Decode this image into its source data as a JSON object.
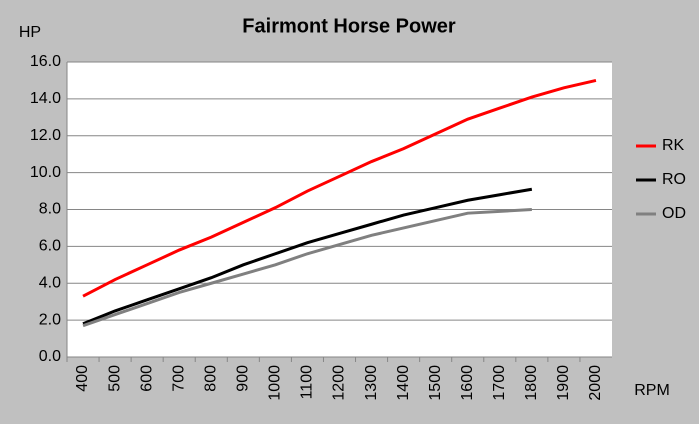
{
  "chart_data": {
    "type": "line",
    "title": "Fairmont Horse Power",
    "y_label": "HP",
    "x_label": "RPM",
    "categories": [
      "400",
      "500",
      "600",
      "700",
      "800",
      "900",
      "1000",
      "1100",
      "1200",
      "1300",
      "1400",
      "1500",
      "1600",
      "1700",
      "1800",
      "1900",
      "2000"
    ],
    "series": [
      {
        "name": "RK",
        "color": "#ff0000",
        "values": [
          3.3,
          4.2,
          5.0,
          5.8,
          6.5,
          7.3,
          8.1,
          9.0,
          9.8,
          10.6,
          11.3,
          12.1,
          12.9,
          13.5,
          14.1,
          14.6,
          15.0
        ]
      },
      {
        "name": "RO",
        "color": "#000000",
        "values": [
          1.8,
          2.5,
          3.1,
          3.7,
          4.3,
          5.0,
          5.6,
          6.2,
          6.7,
          7.2,
          7.7,
          8.1,
          8.5,
          8.8,
          9.1,
          null,
          null
        ]
      },
      {
        "name": "OD",
        "color": "#808080",
        "values": [
          1.7,
          2.3,
          2.9,
          3.5,
          4.0,
          4.5,
          5.0,
          5.6,
          6.1,
          6.6,
          7.0,
          7.4,
          7.8,
          7.9,
          8.0,
          null,
          null
        ]
      }
    ],
    "ylim": [
      0,
      16
    ],
    "yticks": [
      {
        "value": 0,
        "label": "0.0"
      },
      {
        "value": 2,
        "label": "2.0"
      },
      {
        "value": 4,
        "label": "4.0"
      },
      {
        "value": 6,
        "label": "6.0"
      },
      {
        "value": 8,
        "label": "8.0"
      },
      {
        "value": 10,
        "label": "10.0"
      },
      {
        "value": 12,
        "label": "12.0"
      },
      {
        "value": 14,
        "label": "14.0"
      },
      {
        "value": 16,
        "label": "16.0"
      }
    ],
    "grid": true,
    "legend": "right"
  }
}
